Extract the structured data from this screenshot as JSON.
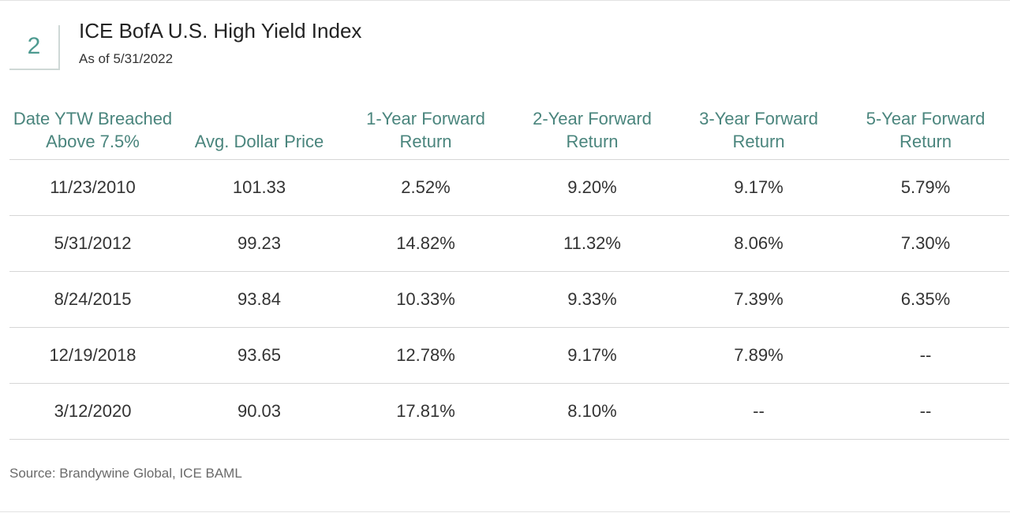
{
  "figure": {
    "number": "2",
    "title": "ICE BofA U.S. High Yield Index",
    "subtitle": "As of 5/31/2022"
  },
  "table": {
    "headers": [
      [
        "Date YTW Breached",
        "Above 7.5%"
      ],
      [
        "Avg. Dollar Price"
      ],
      [
        "1-Year Forward",
        "Return"
      ],
      [
        "2-Year Forward",
        "Return"
      ],
      [
        "3-Year Forward",
        "Return"
      ],
      [
        "5-Year Forward",
        "Return"
      ]
    ],
    "rows": [
      [
        "11/23/2010",
        "101.33",
        "2.52%",
        "9.20%",
        "9.17%",
        "5.79%"
      ],
      [
        "5/31/2012",
        "99.23",
        "14.82%",
        "11.32%",
        "8.06%",
        "7.30%"
      ],
      [
        "8/24/2015",
        "93.84",
        "10.33%",
        "9.33%",
        "7.39%",
        "6.35%"
      ],
      [
        "12/19/2018",
        "93.65",
        "12.78%",
        "9.17%",
        "7.89%",
        "--"
      ],
      [
        "3/12/2020",
        "90.03",
        "17.81%",
        "8.10%",
        "--",
        "--"
      ]
    ]
  },
  "source": "Source: Brandywine Global, ICE BAML",
  "colors": {
    "accent": "#4d9a90",
    "header_text": "#4a857d"
  }
}
